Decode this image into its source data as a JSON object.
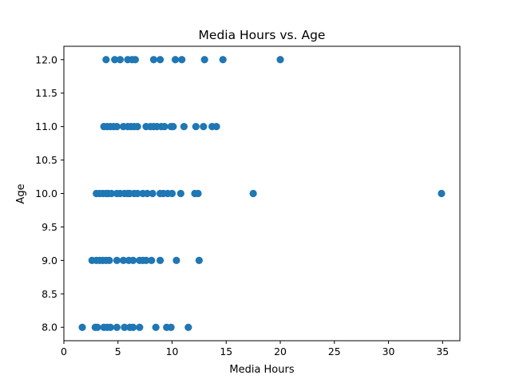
{
  "chart_data": {
    "type": "scatter",
    "title": "Media Hours vs. Age",
    "xlabel": "Media Hours",
    "ylabel": "Age",
    "xlim": [
      0,
      36.6
    ],
    "ylim": [
      7.8,
      12.2
    ],
    "xticks": [
      0,
      5,
      10,
      15,
      20,
      25,
      30,
      35
    ],
    "xtick_labels": [
      "0",
      "5",
      "10",
      "15",
      "20",
      "25",
      "30",
      "35"
    ],
    "yticks": [
      8.0,
      8.5,
      9.0,
      9.5,
      10.0,
      10.5,
      11.0,
      11.5,
      12.0
    ],
    "ytick_labels": [
      "8.0",
      "8.5",
      "9.0",
      "9.5",
      "10.0",
      "10.5",
      "11.0",
      "11.5",
      "12.0"
    ],
    "grid": false,
    "marker_color": "#1f77b4",
    "series": [
      {
        "points": [
          {
            "x": 3.9,
            "y": 12
          },
          {
            "x": 4.7,
            "y": 12
          },
          {
            "x": 5.2,
            "y": 12
          },
          {
            "x": 5.9,
            "y": 12
          },
          {
            "x": 6.3,
            "y": 12
          },
          {
            "x": 6.6,
            "y": 12
          },
          {
            "x": 8.3,
            "y": 12
          },
          {
            "x": 8.9,
            "y": 12
          },
          {
            "x": 10.3,
            "y": 12
          },
          {
            "x": 10.9,
            "y": 12
          },
          {
            "x": 13.0,
            "y": 12
          },
          {
            "x": 14.7,
            "y": 12
          },
          {
            "x": 20.0,
            "y": 12
          },
          {
            "x": 3.7,
            "y": 11
          },
          {
            "x": 4.0,
            "y": 11
          },
          {
            "x": 4.3,
            "y": 11
          },
          {
            "x": 4.6,
            "y": 11
          },
          {
            "x": 4.9,
            "y": 11
          },
          {
            "x": 5.5,
            "y": 11
          },
          {
            "x": 5.9,
            "y": 11
          },
          {
            "x": 6.2,
            "y": 11
          },
          {
            "x": 6.5,
            "y": 11
          },
          {
            "x": 6.8,
            "y": 11
          },
          {
            "x": 7.6,
            "y": 11
          },
          {
            "x": 8.0,
            "y": 11
          },
          {
            "x": 8.3,
            "y": 11
          },
          {
            "x": 8.6,
            "y": 11
          },
          {
            "x": 9.0,
            "y": 11
          },
          {
            "x": 9.3,
            "y": 11
          },
          {
            "x": 9.9,
            "y": 11
          },
          {
            "x": 10.1,
            "y": 11
          },
          {
            "x": 11.1,
            "y": 11
          },
          {
            "x": 12.2,
            "y": 11
          },
          {
            "x": 12.9,
            "y": 11
          },
          {
            "x": 13.7,
            "y": 11
          },
          {
            "x": 14.1,
            "y": 11
          },
          {
            "x": 3.0,
            "y": 10
          },
          {
            "x": 3.3,
            "y": 10
          },
          {
            "x": 3.6,
            "y": 10
          },
          {
            "x": 3.9,
            "y": 10
          },
          {
            "x": 4.1,
            "y": 10
          },
          {
            "x": 4.4,
            "y": 10
          },
          {
            "x": 4.9,
            "y": 10
          },
          {
            "x": 5.2,
            "y": 10
          },
          {
            "x": 5.6,
            "y": 10
          },
          {
            "x": 5.9,
            "y": 10
          },
          {
            "x": 6.1,
            "y": 10
          },
          {
            "x": 6.5,
            "y": 10
          },
          {
            "x": 6.8,
            "y": 10
          },
          {
            "x": 7.3,
            "y": 10
          },
          {
            "x": 7.7,
            "y": 10
          },
          {
            "x": 8.2,
            "y": 10
          },
          {
            "x": 8.9,
            "y": 10
          },
          {
            "x": 9.2,
            "y": 10
          },
          {
            "x": 9.6,
            "y": 10
          },
          {
            "x": 10.0,
            "y": 10
          },
          {
            "x": 10.8,
            "y": 10
          },
          {
            "x": 12.1,
            "y": 10
          },
          {
            "x": 12.4,
            "y": 10
          },
          {
            "x": 17.5,
            "y": 10
          },
          {
            "x": 34.9,
            "y": 10
          },
          {
            "x": 2.6,
            "y": 9
          },
          {
            "x": 3.0,
            "y": 9
          },
          {
            "x": 3.3,
            "y": 9
          },
          {
            "x": 3.6,
            "y": 9
          },
          {
            "x": 3.9,
            "y": 9
          },
          {
            "x": 4.2,
            "y": 9
          },
          {
            "x": 4.9,
            "y": 9
          },
          {
            "x": 5.5,
            "y": 9
          },
          {
            "x": 6.0,
            "y": 9
          },
          {
            "x": 6.4,
            "y": 9
          },
          {
            "x": 7.0,
            "y": 9
          },
          {
            "x": 7.3,
            "y": 9
          },
          {
            "x": 7.6,
            "y": 9
          },
          {
            "x": 8.1,
            "y": 9
          },
          {
            "x": 8.9,
            "y": 9
          },
          {
            "x": 10.4,
            "y": 9
          },
          {
            "x": 12.5,
            "y": 9
          },
          {
            "x": 1.7,
            "y": 8
          },
          {
            "x": 2.9,
            "y": 8
          },
          {
            "x": 3.1,
            "y": 8
          },
          {
            "x": 3.7,
            "y": 8
          },
          {
            "x": 4.0,
            "y": 8
          },
          {
            "x": 4.3,
            "y": 8
          },
          {
            "x": 4.9,
            "y": 8
          },
          {
            "x": 5.6,
            "y": 8
          },
          {
            "x": 6.1,
            "y": 8
          },
          {
            "x": 6.4,
            "y": 8
          },
          {
            "x": 7.0,
            "y": 8
          },
          {
            "x": 8.5,
            "y": 8
          },
          {
            "x": 9.5,
            "y": 8
          },
          {
            "x": 9.9,
            "y": 8
          },
          {
            "x": 11.5,
            "y": 8
          }
        ]
      }
    ]
  }
}
